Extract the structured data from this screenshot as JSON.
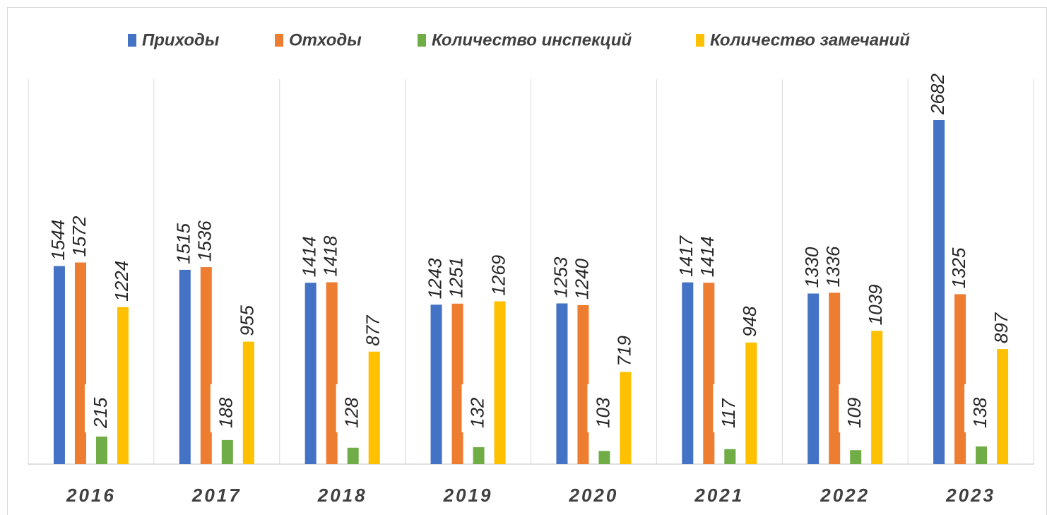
{
  "chart_data": {
    "type": "bar",
    "categories": [
      "2016",
      "2017",
      "2018",
      "2019",
      "2020",
      "2021",
      "2022",
      "2023"
    ],
    "series": [
      {
        "name": "Приходы",
        "color": "#4472c4",
        "values": [
          1544,
          1515,
          1414,
          1243,
          1253,
          1417,
          1330,
          2682
        ]
      },
      {
        "name": "Отходы",
        "color": "#ed7d31",
        "values": [
          1572,
          1536,
          1418,
          1251,
          1240,
          1414,
          1336,
          1325
        ]
      },
      {
        "name": "Количество инспекций",
        "color": "#70ad47",
        "values": [
          215,
          188,
          128,
          132,
          103,
          117,
          109,
          138
        ]
      },
      {
        "name": "Количество замечаний",
        "color": "#ffc000",
        "values": [
          1224,
          955,
          877,
          1269,
          719,
          948,
          1039,
          897
        ]
      }
    ],
    "legend": "top"
  }
}
